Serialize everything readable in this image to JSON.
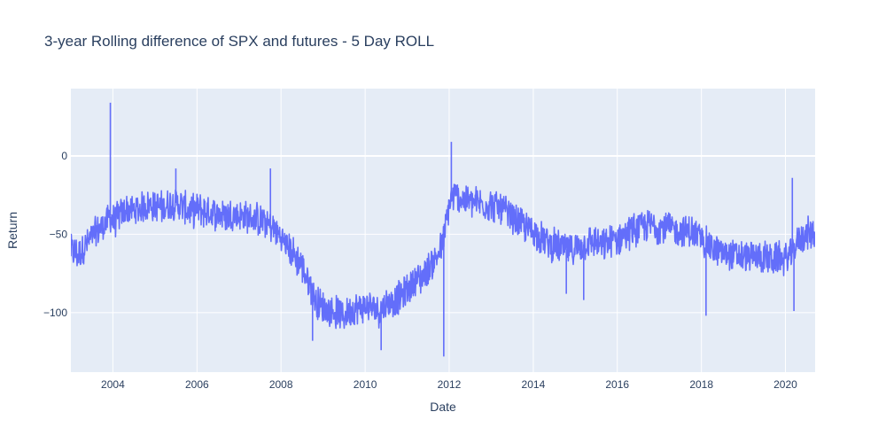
{
  "chart_data": {
    "type": "line",
    "title": "3-year Rolling difference of SPX and futures - 5 Day ROLL",
    "xlabel": "Date",
    "ylabel": "Return",
    "xlim": [
      "2003-01-01",
      "2020-09-15"
    ],
    "ylim": [
      -138,
      43
    ],
    "x_ticks": [
      "2004",
      "2006",
      "2008",
      "2010",
      "2012",
      "2014",
      "2016",
      "2018",
      "2020"
    ],
    "y_ticks": [
      0,
      -50,
      -100
    ],
    "y_tick_labels": [
      "0",
      "−50",
      "−100"
    ],
    "grid": true,
    "legend": "none",
    "colors": {
      "line": "#636efa",
      "plot_bg": "#e5ecf6",
      "grid": "#ffffff",
      "text": "#2a3f5f"
    },
    "series": [
      {
        "values_note_excluded": false,
        "x": [
          "2003-01-01",
          "2003-03-01",
          "2003-05-01",
          "2003-07-01",
          "2003-09-01",
          "2003-11-01",
          "2003-12-10",
          "2004-01-01",
          "2004-03-01",
          "2004-05-01",
          "2004-07-01",
          "2004-09-01",
          "2004-11-01",
          "2005-01-01",
          "2005-03-01",
          "2005-05-01",
          "2005-07-01",
          "2005-09-01",
          "2005-11-01",
          "2006-01-01",
          "2006-03-01",
          "2006-05-01",
          "2006-07-01",
          "2006-09-01",
          "2006-11-01",
          "2007-01-01",
          "2007-03-01",
          "2007-05-01",
          "2007-07-01",
          "2007-09-01",
          "2007-11-01",
          "2008-01-01",
          "2008-03-01",
          "2008-05-01",
          "2008-07-01",
          "2008-09-01",
          "2008-11-01",
          "2009-01-01",
          "2009-03-01",
          "2009-05-01",
          "2009-07-01",
          "2009-09-01",
          "2009-11-01",
          "2010-01-01",
          "2010-03-01",
          "2010-05-01",
          "2010-07-01",
          "2010-09-01",
          "2010-11-01",
          "2011-01-01",
          "2011-03-01",
          "2011-05-01",
          "2011-07-01",
          "2011-09-01",
          "2011-11-01",
          "2011-12-15",
          "2012-01-01",
          "2012-03-01",
          "2012-05-01",
          "2012-07-01",
          "2012-09-01",
          "2012-11-01",
          "2013-01-01",
          "2013-03-01",
          "2013-05-01",
          "2013-07-01",
          "2013-09-01",
          "2013-11-01",
          "2014-01-01",
          "2014-03-01",
          "2014-05-01",
          "2014-07-01",
          "2014-09-01",
          "2014-11-01",
          "2015-01-01",
          "2015-03-01",
          "2015-05-01",
          "2015-07-01",
          "2015-09-01",
          "2015-11-01",
          "2016-01-01",
          "2016-03-01",
          "2016-05-01",
          "2016-07-01",
          "2016-09-01",
          "2016-11-01",
          "2017-01-01",
          "2017-03-01",
          "2017-05-01",
          "2017-07-01",
          "2017-09-01",
          "2017-11-01",
          "2018-01-01",
          "2018-03-01",
          "2018-05-01",
          "2018-07-01",
          "2018-09-01",
          "2018-11-01",
          "2019-01-01",
          "2019-03-01",
          "2019-05-01",
          "2019-07-01",
          "2019-09-01",
          "2019-11-01",
          "2020-01-01",
          "2020-03-01",
          "2020-05-01",
          "2020-07-01",
          "2020-09-15"
        ],
        "y": [
          -60,
          -63,
          -58,
          -52,
          -47,
          -43,
          -38,
          -42,
          -38,
          -34,
          -35,
          -33,
          -31,
          -32,
          -33,
          -31,
          -30,
          -32,
          -36,
          -34,
          -35,
          -36,
          -37,
          -38,
          -37,
          -38,
          -39,
          -40,
          -41,
          -43,
          -47,
          -52,
          -58,
          -64,
          -70,
          -82,
          -92,
          -97,
          -99,
          -100,
          -102,
          -98,
          -97,
          -96,
          -97,
          -98,
          -95,
          -92,
          -90,
          -86,
          -80,
          -78,
          -72,
          -66,
          -58,
          -40,
          -30,
          -25,
          -28,
          -29,
          -30,
          -31,
          -31,
          -33,
          -36,
          -40,
          -43,
          -46,
          -48,
          -52,
          -55,
          -57,
          -59,
          -60,
          -59,
          -57,
          -55,
          -55,
          -58,
          -55,
          -53,
          -50,
          -48,
          -46,
          -45,
          -44,
          -45,
          -46,
          -47,
          -48,
          -48,
          -49,
          -53,
          -57,
          -60,
          -62,
          -63,
          -64,
          -64,
          -65,
          -64,
          -65,
          -66,
          -65,
          -66,
          -62,
          -52,
          -50,
          -49
        ]
      }
    ],
    "spikes": [
      {
        "x": "2003-12-10",
        "y": 34
      },
      {
        "x": "2005-07-01",
        "y": -8
      },
      {
        "x": "2007-10-01",
        "y": -8
      },
      {
        "x": "2008-10-01",
        "y": -118
      },
      {
        "x": "2010-05-20",
        "y": -124
      },
      {
        "x": "2011-11-15",
        "y": -128
      },
      {
        "x": "2012-01-20",
        "y": 9
      },
      {
        "x": "2014-10-15",
        "y": -88
      },
      {
        "x": "2015-03-15",
        "y": -92
      },
      {
        "x": "2018-02-10",
        "y": -102
      },
      {
        "x": "2020-03-15",
        "y": -99
      },
      {
        "x": "2020-03-01",
        "y": -14
      }
    ]
  }
}
